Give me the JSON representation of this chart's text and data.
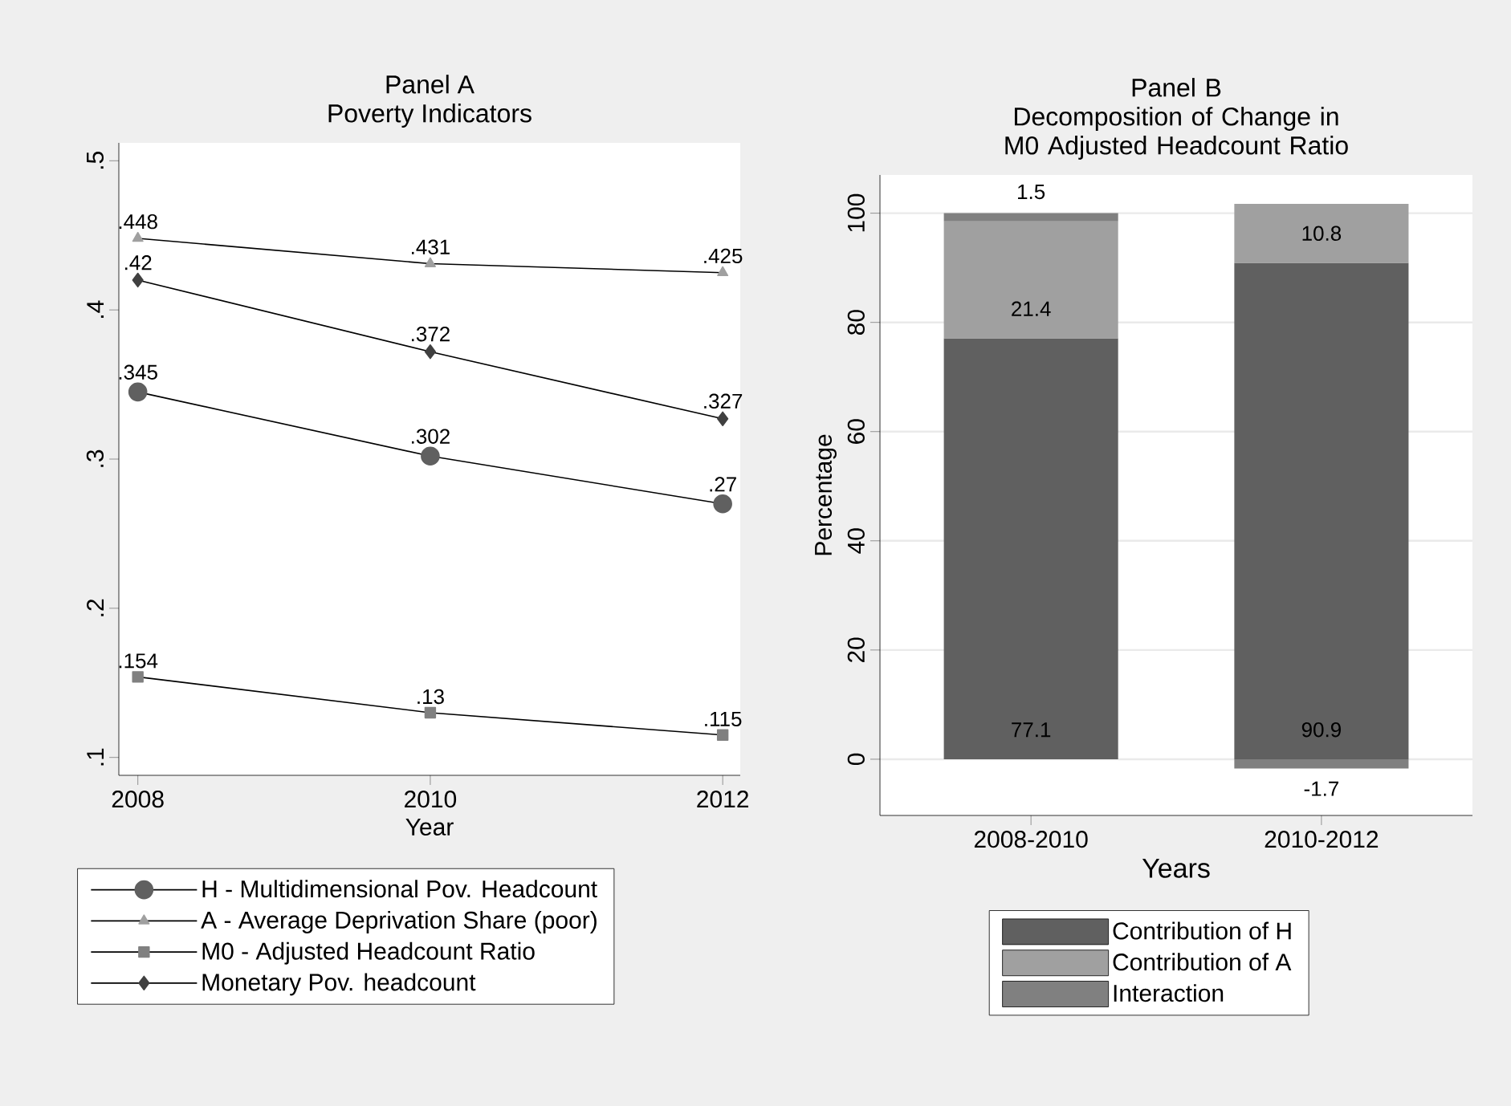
{
  "chart_data": [
    {
      "type": "line",
      "title": "Panel A",
      "subtitle": "Poverty Indicators",
      "xlabel": "Year",
      "x": [
        2008,
        2010,
        2012
      ],
      "xlim": [
        2007.87,
        2012.12
      ],
      "xticks": [
        2008,
        2010,
        2012
      ],
      "ylim": [
        0.088,
        0.512
      ],
      "yticks": [
        {
          "value": 0.1,
          "label": ".1"
        },
        {
          "value": 0.2,
          "label": ".2"
        },
        {
          "value": 0.3,
          "label": ".3"
        },
        {
          "value": 0.4,
          "label": ".4"
        },
        {
          "value": 0.5,
          "label": ".5"
        }
      ],
      "legend": "bottom",
      "series": [
        {
          "name": "H - Multidimensional Pov. Headcount",
          "color": "#606060",
          "marker": "circle",
          "values": [
            0.345,
            0.302,
            0.27
          ],
          "value_labels": [
            ".345",
            ".302",
            ".27"
          ]
        },
        {
          "name": "A - Average Deprivation Share (poor)",
          "color": "#a0a0a0",
          "marker": "triangle",
          "values": [
            0.448,
            0.431,
            0.425
          ],
          "value_labels": [
            ".448",
            ".431",
            ".425"
          ]
        },
        {
          "name": "M0 - Adjusted Headcount Ratio",
          "color": "#808080",
          "marker": "square",
          "values": [
            0.154,
            0.13,
            0.115
          ],
          "value_labels": [
            ".154",
            ".13",
            ".115"
          ]
        },
        {
          "name": "Monetary Pov. headcount",
          "color": "#404040",
          "marker": "diamond",
          "values": [
            0.42,
            0.372,
            0.327
          ],
          "value_labels": [
            ".42",
            ".372",
            ".327"
          ]
        }
      ]
    },
    {
      "type": "bar",
      "title": "Panel B",
      "subtitle": "Decomposition of Change in M0 Adjusted Headcount Ratio",
      "xlabel": "Years",
      "ylabel": "Percentage",
      "categories": [
        "2008-2010",
        "2010-2012"
      ],
      "ylim": [
        -10.3,
        107
      ],
      "yticks": [
        0,
        20,
        40,
        60,
        80,
        100
      ],
      "stacked": true,
      "data_labels": true,
      "grid": "y",
      "legend": "bottom",
      "series": [
        {
          "name": "Contribution of H",
          "color": "#606060",
          "values": [
            77.1,
            90.9
          ]
        },
        {
          "name": "Contribution of A",
          "color": "#a0a0a0",
          "values": [
            21.4,
            10.8
          ]
        },
        {
          "name": "Interaction",
          "color": "#808080",
          "values": [
            1.5,
            -1.7
          ]
        }
      ]
    }
  ]
}
